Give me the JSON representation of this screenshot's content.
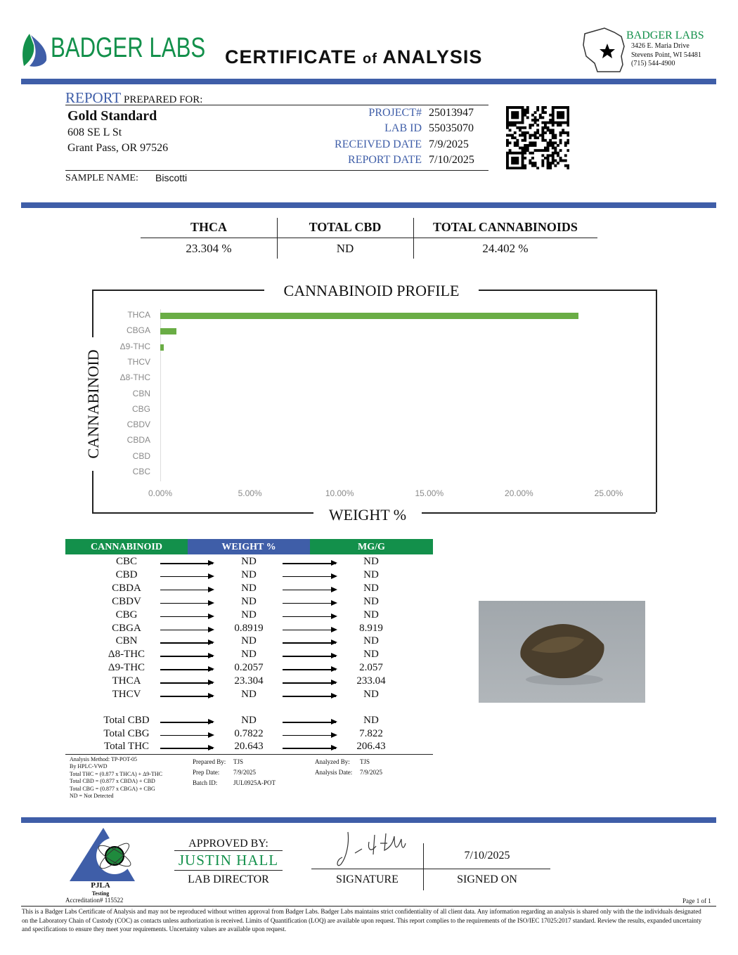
{
  "header": {
    "logo_text": "BADGER LABS",
    "title_main1": "CERTIFICATE",
    "title_of": "of",
    "title_main2": "ANALYSIS",
    "lab": {
      "name": "BADGER LABS",
      "address1": "3426 E. Maria Drive",
      "address2": "Stevens Point, WI 54481",
      "phone": "(715) 544-4900"
    }
  },
  "report": {
    "report_word": "REPORT",
    "prepared_for": "PREPARED FOR:",
    "client": "Gold Standard",
    "address1": "608 SE L St",
    "address2": "Grant Pass, OR 97526",
    "fields": [
      {
        "label": "PROJECT#",
        "value": "25013947"
      },
      {
        "label": "LAB ID",
        "value": "55035070"
      },
      {
        "label": "RECEIVED DATE",
        "value": "7/9/2025"
      },
      {
        "label": "REPORT DATE",
        "value": "7/10/2025"
      }
    ],
    "sample_label": "SAMPLE NAME:",
    "sample_name": "Biscotti"
  },
  "summary": [
    {
      "label": "THCA",
      "value": "23.304 %"
    },
    {
      "label": "TOTAL CBD",
      "value": "ND"
    },
    {
      "label": "TOTAL CANNABINOIDS",
      "value": "24.402 %"
    }
  ],
  "chart_data": {
    "type": "bar",
    "orientation": "horizontal",
    "title": "CANNABINOID PROFILE",
    "xlabel": "WEIGHT %",
    "ylabel": "CANNABINOID",
    "categories": [
      "THCA",
      "CBGA",
      "Δ9-THC",
      "THCV",
      "Δ8-THC",
      "CBN",
      "CBG",
      "CBDV",
      "CBDA",
      "CBD",
      "CBC"
    ],
    "values": [
      23.304,
      0.8919,
      0.2057,
      0,
      0,
      0,
      0,
      0,
      0,
      0,
      0
    ],
    "xlim": [
      0,
      25
    ],
    "x_ticks": [
      "0.00%",
      "5.00%",
      "10.00%",
      "15.00%",
      "20.00%",
      "25.00%"
    ],
    "grid": false,
    "bar_color": "#6aad45"
  },
  "table": {
    "headers": [
      "CANNABINOID",
      "WEIGHT %",
      "MG/G"
    ],
    "header_colors": [
      "#13904b",
      "#3f5ea8",
      "#13904b"
    ],
    "rows": [
      [
        "CBC",
        "ND",
        "ND"
      ],
      [
        "CBD",
        "ND",
        "ND"
      ],
      [
        "CBDA",
        "ND",
        "ND"
      ],
      [
        "CBDV",
        "ND",
        "ND"
      ],
      [
        "CBG",
        "ND",
        "ND"
      ],
      [
        "CBGA",
        "0.8919",
        "8.919"
      ],
      [
        "CBN",
        "ND",
        "ND"
      ],
      [
        "Δ8-THC",
        "ND",
        "ND"
      ],
      [
        "Δ9-THC",
        "0.2057",
        "2.057"
      ],
      [
        "THCA",
        "23.304",
        "233.04"
      ],
      [
        "THCV",
        "ND",
        "ND"
      ]
    ],
    "totals": [
      [
        "Total CBD",
        "ND",
        "ND"
      ],
      [
        "Total CBG",
        "0.7822",
        "7.822"
      ],
      [
        "Total THC",
        "20.643",
        "206.43"
      ]
    ]
  },
  "notes": {
    "method": [
      "Analysis Method: TP-POT-05",
      "By HPLC-VWD",
      "Total THC = (0.877 x  THCA) + Δ9-THC",
      "Total CBD = (0.877 x  CBDA) + CBD",
      "Total CBG = (0.877 x  CBGA) + CBG",
      "ND = Not Detected"
    ],
    "prepared_by_label": "Prepared By:",
    "prepared_by": "TJS",
    "prep_date_label": "Prep Date:",
    "prep_date": "7/9/2025",
    "batch_label": "Batch ID:",
    "batch": "JUL0925A-POT",
    "analyzed_by_label": "Analyzed By:",
    "analyzed_by": "TJS",
    "analysis_date_label": "Analysis Date:",
    "analysis_date": "7/9/2025"
  },
  "footer": {
    "pjla": "PJLA",
    "testing": "Testing",
    "accreditation": "Accreditation# 115522",
    "approved_by": "APPROVED BY:",
    "approver": "JUSTIN HALL",
    "approver_title": "LAB DIRECTOR",
    "signature_label": "SIGNATURE",
    "signed_date": "7/10/2025",
    "signed_on_label": "SIGNED ON",
    "page": "Page 1 of 1",
    "disclaimer": "This is a Badger Labs Certificate of Analysis and may not be reproduced without written approval from Badger Labs. Badger Labs maintains strict confidentiality of all client data. Any information regarding an analysis is shared only with the the individuals designated on the Laboratory Chain of Custody (COC) as contacts unless authorization is received. Limits of Quantification (LOQ) are available upon request. This report complies to the requirements of the ISO/IEC 17025:2017 standard. Review the results, expanded uncertainty and specifications to ensure they meet your requirements. Uncertainty values are available upon request."
  }
}
